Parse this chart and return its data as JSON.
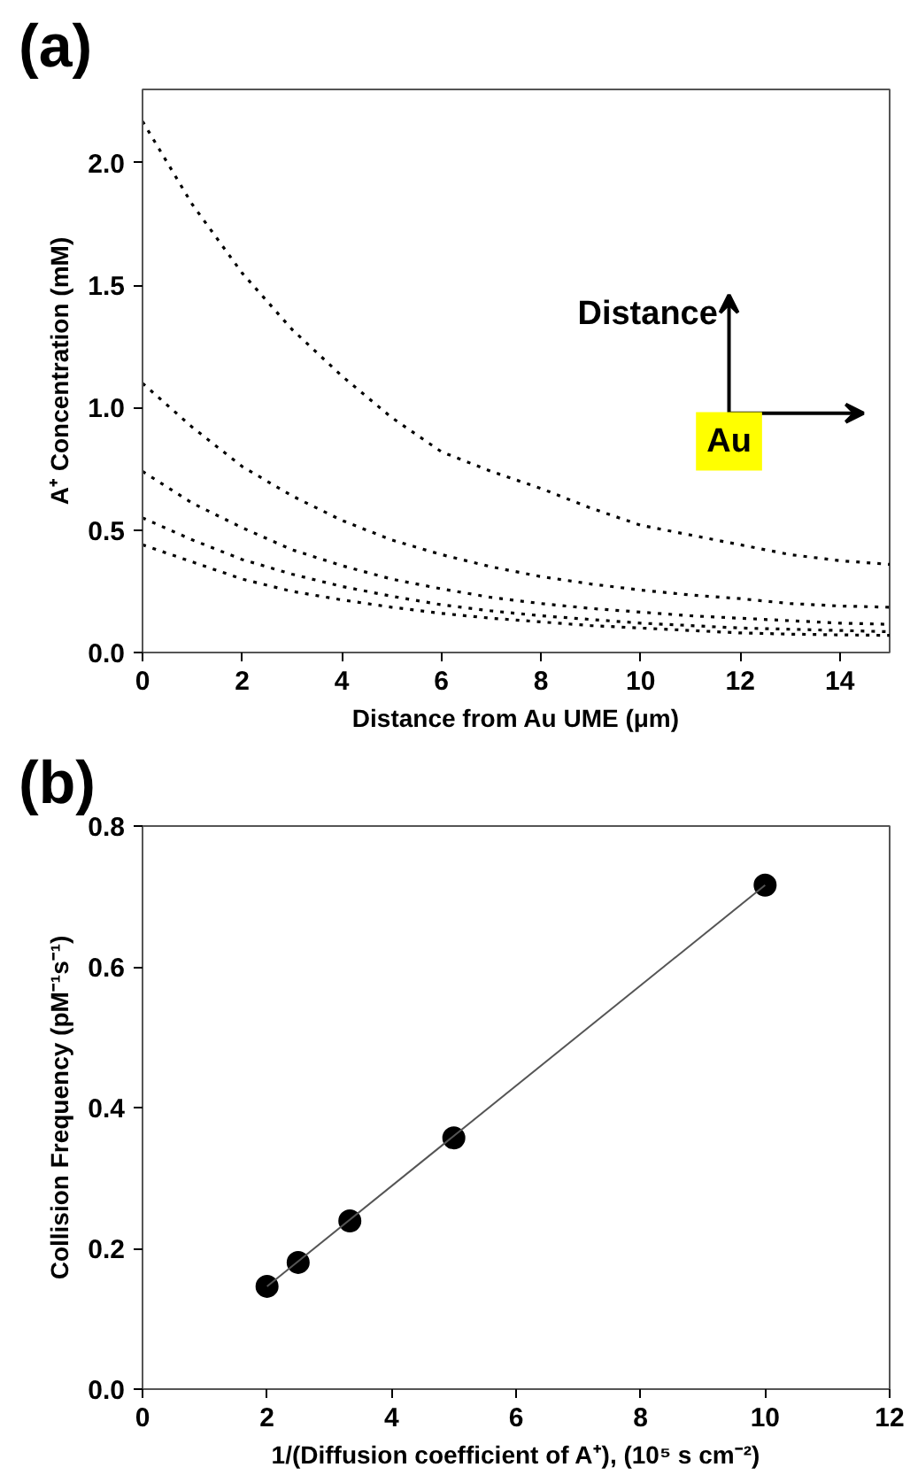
{
  "chart_data": [
    {
      "type": "line",
      "title": "(a)",
      "xlabel": "Distance from Au UME (μm)",
      "ylabel": "A⁺ Concentration (mM)",
      "x": [
        0,
        1,
        2,
        3,
        4,
        5,
        6,
        7,
        8,
        9,
        10,
        11,
        12,
        13,
        14,
        15
      ],
      "series": [
        {
          "color": "#000000",
          "values": [
            2.17,
            1.83,
            1.55,
            1.32,
            1.13,
            0.96,
            0.82,
            0.74,
            0.67,
            0.59,
            0.52,
            0.48,
            0.44,
            0.4,
            0.375,
            0.36
          ]
        },
        {
          "color": "#000000",
          "values": [
            1.1,
            0.92,
            0.76,
            0.64,
            0.54,
            0.46,
            0.4,
            0.35,
            0.31,
            0.28,
            0.255,
            0.235,
            0.22,
            0.2,
            0.19,
            0.185
          ]
        },
        {
          "color": "#000000",
          "values": [
            0.74,
            0.61,
            0.51,
            0.42,
            0.355,
            0.3,
            0.26,
            0.225,
            0.2,
            0.18,
            0.165,
            0.15,
            0.14,
            0.13,
            0.12,
            0.115
          ]
        },
        {
          "color": "#000000",
          "values": [
            0.55,
            0.46,
            0.38,
            0.32,
            0.27,
            0.23,
            0.195,
            0.17,
            0.15,
            0.135,
            0.12,
            0.11,
            0.1,
            0.095,
            0.09,
            0.085
          ]
        },
        {
          "color": "#000000",
          "values": [
            0.44,
            0.37,
            0.3,
            0.25,
            0.215,
            0.185,
            0.16,
            0.14,
            0.125,
            0.11,
            0.1,
            0.09,
            0.08,
            0.075,
            0.072,
            0.07
          ]
        }
      ],
      "line_style": "dotted",
      "xlim": [
        0,
        15
      ],
      "xticks": [
        0,
        2,
        4,
        6,
        8,
        10,
        12,
        14
      ],
      "ylim": [
        0,
        2.3
      ],
      "yticks": [
        {
          "value": 0,
          "label": "0.0"
        },
        {
          "value": 0.5,
          "label": "0.5"
        },
        {
          "value": 1,
          "label": "1.0"
        },
        {
          "value": 1.5,
          "label": "1.5"
        },
        {
          "value": 2,
          "label": "2.0"
        }
      ],
      "annotations": [
        "Distance",
        "Au"
      ],
      "grid": false
    },
    {
      "type": "scatter",
      "title": "(b)",
      "xlabel": "1/(Diffusion coefficient of A⁺), (10⁵ s cm⁻²)",
      "ylabel": "Collision Frequency (pM⁻¹s⁻¹)",
      "x": [
        2,
        2.5,
        3.33,
        5,
        10
      ],
      "series": [
        {
          "color": "#000000",
          "marker": "circle",
          "values": [
            0.146,
            0.18,
            0.239,
            0.357,
            0.716
          ]
        },
        {
          "type": "line",
          "color": "#555555",
          "x": [
            2,
            10
          ],
          "values": [
            0.146,
            0.716
          ]
        }
      ],
      "xlim": [
        0,
        12
      ],
      "xticks": [
        0,
        2,
        4,
        6,
        8,
        10,
        12
      ],
      "ylim": [
        0,
        0.8
      ],
      "yticks": [
        {
          "value": 0,
          "label": "0.0"
        },
        {
          "value": 0.2,
          "label": "0.2"
        },
        {
          "value": 0.4,
          "label": "0.4"
        },
        {
          "value": 0.6,
          "label": "0.6"
        },
        {
          "value": 0.8,
          "label": "0.8"
        }
      ],
      "grid": false
    }
  ]
}
